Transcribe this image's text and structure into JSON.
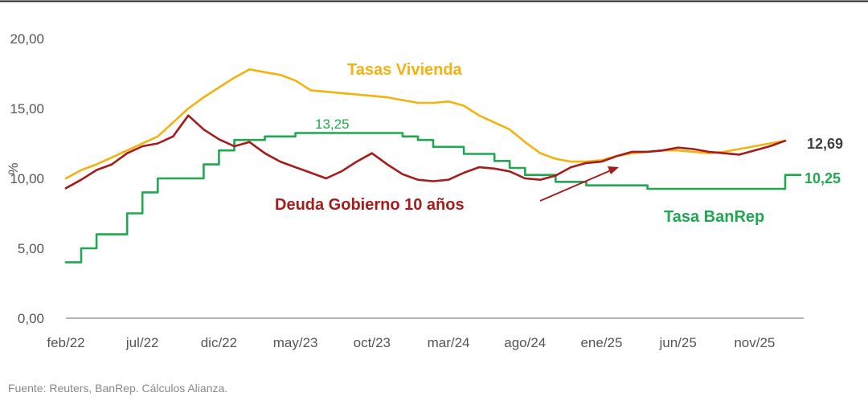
{
  "colors": {
    "vivienda": "#F2B20F",
    "deuda": "#A51C1C",
    "banrep": "#1FA84F",
    "end_label": "#404040",
    "axis": "#9a9a9a",
    "text": "#555555",
    "source": "#888888"
  },
  "chart_data": {
    "type": "line",
    "ylabel": "%",
    "ylim": [
      0,
      20
    ],
    "y_ticks": [
      "0,00",
      "5,00",
      "10,00",
      "15,00",
      "20,00"
    ],
    "y_tick_values": [
      0,
      5,
      10,
      15,
      20
    ],
    "x_range": [
      "2022-02",
      "2026-02"
    ],
    "x_ticks": [
      "feb/22",
      "jul/22",
      "dic/22",
      "may/23",
      "oct/23",
      "mar/24",
      "ago/24",
      "ene/25",
      "jun/25",
      "nov/25"
    ],
    "x_tick_values": [
      "2022-02",
      "2022-07",
      "2022-12",
      "2023-05",
      "2023-10",
      "2024-03",
      "2024-08",
      "2025-01",
      "2025-06",
      "2025-11"
    ],
    "grid": false,
    "series": [
      {
        "name": "Tasas Vivienda",
        "color_key": "vivienda",
        "x": [
          "2022-02",
          "2022-03",
          "2022-04",
          "2022-05",
          "2022-06",
          "2022-07",
          "2022-08",
          "2022-09",
          "2022-10",
          "2022-11",
          "2022-12",
          "2023-01",
          "2023-02",
          "2023-03",
          "2023-04",
          "2023-05",
          "2023-06",
          "2023-07",
          "2023-08",
          "2023-09",
          "2023-10",
          "2023-11",
          "2023-12",
          "2024-01",
          "2024-02",
          "2024-03",
          "2024-04",
          "2024-05",
          "2024-06",
          "2024-07",
          "2024-08",
          "2024-09",
          "2024-10",
          "2024-11",
          "2024-12",
          "2025-01",
          "2025-02",
          "2025-03",
          "2025-04",
          "2025-05",
          "2025-06",
          "2025-07",
          "2025-08",
          "2025-09",
          "2025-10",
          "2025-11",
          "2025-12",
          "2026-01"
        ],
        "y": [
          10.0,
          10.6,
          11.0,
          11.5,
          12.0,
          12.5,
          13.0,
          14.0,
          15.0,
          15.8,
          16.5,
          17.2,
          17.8,
          17.6,
          17.4,
          17.0,
          16.3,
          16.2,
          16.1,
          16.0,
          15.9,
          15.8,
          15.6,
          15.4,
          15.4,
          15.5,
          15.2,
          14.5,
          14.0,
          13.5,
          12.6,
          11.8,
          11.4,
          11.2,
          11.2,
          11.3,
          11.6,
          11.8,
          11.9,
          12.0,
          12.0,
          11.9,
          11.8,
          11.9,
          12.1,
          12.3,
          12.5,
          12.69
        ]
      },
      {
        "name": "Deuda Gobierno 10 años",
        "color_key": "deuda",
        "x": [
          "2022-02",
          "2022-03",
          "2022-04",
          "2022-05",
          "2022-06",
          "2022-07",
          "2022-08",
          "2022-09",
          "2022-10",
          "2022-11",
          "2022-12",
          "2023-01",
          "2023-02",
          "2023-03",
          "2023-04",
          "2023-05",
          "2023-06",
          "2023-07",
          "2023-08",
          "2023-09",
          "2023-10",
          "2023-11",
          "2023-12",
          "2024-01",
          "2024-02",
          "2024-03",
          "2024-04",
          "2024-05",
          "2024-06",
          "2024-07",
          "2024-08",
          "2024-09",
          "2024-10",
          "2024-11",
          "2024-12",
          "2025-01",
          "2025-02",
          "2025-03",
          "2025-04",
          "2025-05",
          "2025-06",
          "2025-07",
          "2025-08",
          "2025-09",
          "2025-10",
          "2025-11",
          "2025-12",
          "2026-01"
        ],
        "y": [
          9.3,
          9.9,
          10.6,
          11.0,
          11.8,
          12.3,
          12.5,
          13.0,
          14.5,
          13.5,
          12.8,
          12.3,
          12.6,
          11.8,
          11.2,
          10.8,
          10.4,
          10.0,
          10.5,
          11.2,
          11.8,
          11.0,
          10.3,
          9.9,
          9.8,
          9.9,
          10.4,
          10.8,
          10.7,
          10.5,
          10.0,
          9.9,
          10.2,
          10.8,
          11.1,
          11.2,
          11.6,
          11.9,
          11.9,
          12.0,
          12.2,
          12.1,
          11.9,
          11.8,
          11.7,
          12.0,
          12.3,
          12.69
        ]
      },
      {
        "name": "Tasa BanRep",
        "color_key": "banrep",
        "step": true,
        "x": [
          "2022-02",
          "2022-03",
          "2022-04",
          "2022-06",
          "2022-07",
          "2022-08",
          "2022-09",
          "2022-11",
          "2022-12",
          "2023-01",
          "2023-03",
          "2023-05",
          "2023-11",
          "2023-12",
          "2024-01",
          "2024-02",
          "2024-03",
          "2024-04",
          "2024-06",
          "2024-07",
          "2024-08",
          "2024-09",
          "2024-10",
          "2024-12",
          "2025-04",
          "2025-09",
          "2025-12",
          "2026-01"
        ],
        "y": [
          4.0,
          5.0,
          6.0,
          7.5,
          9.0,
          10.0,
          10.0,
          11.0,
          12.0,
          12.75,
          13.0,
          13.25,
          13.25,
          13.0,
          12.75,
          12.25,
          12.25,
          11.75,
          11.25,
          10.75,
          10.25,
          10.25,
          9.75,
          9.5,
          9.25,
          9.25,
          9.25,
          10.25
        ]
      }
    ],
    "annotations": {
      "vivienda_label": "Tasas Vivienda",
      "deuda_label": "Deuda Gobierno 10 años",
      "banrep_label": "Tasa BanRep",
      "banrep_peak_label": "13,25",
      "end_value_debt": "12,69",
      "end_value_banrep": "10,25"
    },
    "source": "Fuente: Reuters, BanRep. Cálculos Alianza."
  }
}
